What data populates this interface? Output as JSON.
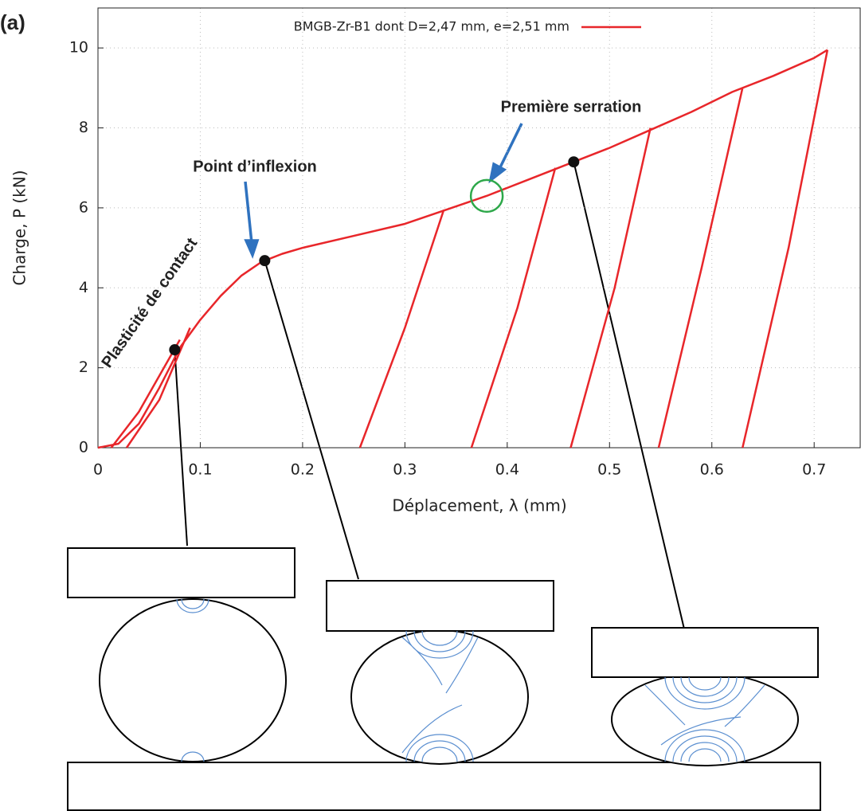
{
  "chart_data": {
    "type": "line",
    "panel_label": "(a)",
    "x_label": "Déplacement, λ (mm)",
    "y_label": "Charge, P (kN)",
    "xlim": [
      0,
      0.745
    ],
    "ylim": [
      0,
      11
    ],
    "xticks": [
      0,
      0.1,
      0.2,
      0.3,
      0.4,
      0.5,
      0.6,
      0.7
    ],
    "yticks": [
      0,
      2,
      4,
      6,
      8,
      10
    ],
    "grid": true,
    "series": [
      {
        "name": "BMGB-Zr-B1 dont D=2,47 mm, e=2,51 mm",
        "color": "#e8262a",
        "x": [
          0,
          0.02,
          0.04,
          0.06,
          0.08,
          0.1,
          0.12,
          0.14,
          0.16,
          0.18,
          0.2,
          0.25,
          0.3,
          0.34,
          0.38,
          0.42,
          0.46,
          0.5,
          0.54,
          0.58,
          0.62,
          0.66,
          0.7,
          0.713,
          0.713,
          0.013,
          0.04,
          0.08,
          0.08,
          0.028,
          0.06,
          0.09,
          0.09,
          0.256,
          0.3,
          0.338,
          0.338,
          0.365,
          0.41,
          0.447,
          0.447,
          0.462,
          0.505,
          0.54,
          0.54,
          0.548,
          0.59,
          0.63,
          0.63,
          0.63,
          0.675,
          0.713
        ],
        "values": [
          0,
          0.1,
          0.6,
          1.5,
          2.5,
          3.2,
          3.8,
          4.3,
          4.65,
          4.85,
          5.0,
          5.3,
          5.6,
          5.95,
          6.3,
          6.7,
          7.1,
          7.5,
          7.95,
          8.4,
          8.9,
          9.3,
          9.75,
          9.95,
          null,
          0,
          0.9,
          2.7,
          null,
          0,
          1.2,
          3.0,
          null,
          0,
          3.0,
          5.95,
          null,
          0,
          3.5,
          7.0,
          null,
          0,
          4.0,
          8.0,
          null,
          0,
          4.5,
          9.0,
          null,
          0,
          5.0,
          9.95
        ]
      }
    ],
    "markers": [
      {
        "x": 0.075,
        "y": 2.45
      },
      {
        "x": 0.163,
        "y": 4.68
      },
      {
        "x": 0.465,
        "y": 7.15
      }
    ],
    "annotations": [
      "Plasticité de contact",
      "Point d’inflexion",
      "Première serration"
    ],
    "highlight": {
      "x": 0.38,
      "y": 6.3
    }
  }
}
